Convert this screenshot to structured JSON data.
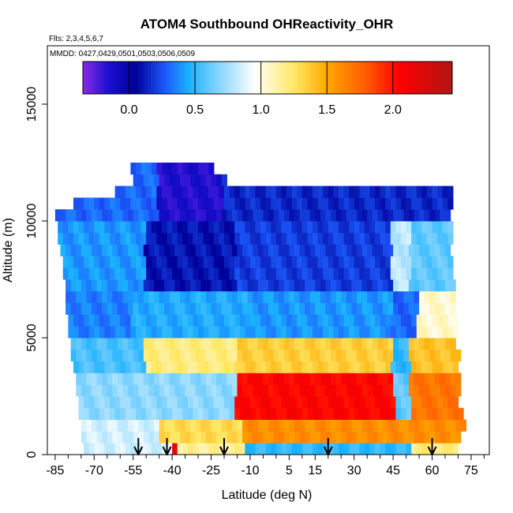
{
  "chart_data": {
    "type": "heatmap",
    "title": "ATOM4 Southbound OHReactivity_OHR",
    "flights_label": "Flts: 2,3,4,5,6,7",
    "dates_label": "MMDD: 0427,0429,0501,0503,0506,0509",
    "xlabel": "Latitude (deg N)",
    "ylabel": "Altitude (m)",
    "xlim": [
      -88,
      82
    ],
    "ylim": [
      0,
      17500
    ],
    "x_ticks": [
      -85,
      -70,
      -55,
      -40,
      -25,
      -10,
      5,
      15,
      30,
      45,
      60,
      75
    ],
    "x_minor_ticks": [
      -80,
      -75,
      -65,
      -60,
      -50,
      -45,
      -35,
      -30,
      -20,
      -15,
      -5,
      0,
      10,
      20,
      25,
      35,
      40,
      50,
      55,
      65,
      70,
      80
    ],
    "y_ticks": [
      0,
      5000,
      10000,
      15000
    ],
    "colorbar": {
      "ticks": [
        0.0,
        0.5,
        1.0,
        1.5,
        2.0
      ],
      "tick_labels": [
        "0.0",
        "0.5",
        "1.0",
        "1.5",
        "2.0"
      ],
      "range": [
        -0.35,
        2.45
      ]
    },
    "colormap": [
      [
        -0.35,
        "#8a2be2"
      ],
      [
        -0.15,
        "#1a0fd0"
      ],
      [
        0.05,
        "#00009a"
      ],
      [
        0.28,
        "#1e5cff"
      ],
      [
        0.45,
        "#1ab0ff"
      ],
      [
        0.7,
        "#8fd8ff"
      ],
      [
        0.95,
        "#ffffff"
      ],
      [
        1.25,
        "#ffe866"
      ],
      [
        1.5,
        "#ffa800"
      ],
      [
        1.8,
        "#ff5a00"
      ],
      [
        2.05,
        "#ff0000"
      ],
      [
        2.45,
        "#b01515"
      ]
    ],
    "altitude_bins": [
      0,
      500,
      1000,
      1500,
      2000,
      2500,
      3000,
      3500,
      4000,
      4500,
      5000,
      5500,
      6000,
      6500,
      7000,
      7500,
      8000,
      8500,
      9000,
      9500,
      10000,
      10500,
      11000,
      11500,
      12000,
      12500
    ],
    "row_extent": [
      [
        -74,
        70
      ],
      [
        -75,
        71
      ],
      [
        -75,
        72
      ],
      [
        -76,
        71
      ],
      [
        -76,
        70
      ],
      [
        -77,
        70
      ],
      [
        -77,
        70
      ],
      [
        -78,
        70
      ],
      [
        -79,
        70
      ],
      [
        -79,
        69
      ],
      [
        -80,
        69
      ],
      [
        -80,
        69
      ],
      [
        -81,
        69
      ],
      [
        -81,
        68
      ],
      [
        -81,
        68
      ],
      [
        -82,
        68
      ],
      [
        -82,
        67
      ],
      [
        -83,
        67
      ],
      [
        -84,
        67
      ],
      [
        -84,
        67
      ],
      [
        -85,
        66
      ],
      [
        -78,
        67
      ],
      [
        -62,
        67
      ],
      [
        -55,
        -20
      ],
      [
        -56,
        -25
      ]
    ],
    "regions": [
      {
        "lat_range": [
          -90,
          -40
        ],
        "alt_range": [
          0,
          500
        ],
        "value": 0.85
      },
      {
        "lat_range": [
          -45,
          -37
        ],
        "alt_range": [
          0,
          500
        ],
        "value": 2.2
      },
      {
        "lat_range": [
          -37,
          -12
        ],
        "alt_range": [
          0,
          500
        ],
        "value": 1.15
      },
      {
        "lat_range": [
          -12,
          52
        ],
        "alt_range": [
          0,
          500
        ],
        "value": 0.5
      },
      {
        "lat_range": [
          52,
          90
        ],
        "alt_range": [
          0,
          500
        ],
        "value": 1.2
      },
      {
        "lat_range": [
          -90,
          -45
        ],
        "alt_range": [
          500,
          1500
        ],
        "value": 0.85
      },
      {
        "lat_range": [
          -45,
          -12
        ],
        "alt_range": [
          500,
          1500
        ],
        "value": 1.3
      },
      {
        "lat_range": [
          -12,
          45
        ],
        "alt_range": [
          500,
          1500
        ],
        "value": 1.6
      },
      {
        "lat_range": [
          45,
          90
        ],
        "alt_range": [
          500,
          1500
        ],
        "value": 1.6
      },
      {
        "lat_range": [
          -90,
          -15
        ],
        "alt_range": [
          1500,
          3500
        ],
        "value": 0.7
      },
      {
        "lat_range": [
          -15,
          46
        ],
        "alt_range": [
          1500,
          3500
        ],
        "value": 2.05
      },
      {
        "lat_range": [
          46,
          52
        ],
        "alt_range": [
          1500,
          3500
        ],
        "value": 0.6
      },
      {
        "lat_range": [
          52,
          90
        ],
        "alt_range": [
          1500,
          3500
        ],
        "value": 1.7
      },
      {
        "lat_range": [
          -90,
          -50
        ],
        "alt_range": [
          3500,
          5000
        ],
        "value": 0.55
      },
      {
        "lat_range": [
          -50,
          -15
        ],
        "alt_range": [
          3500,
          5000
        ],
        "value": 1.2
      },
      {
        "lat_range": [
          -15,
          45
        ],
        "alt_range": [
          3500,
          5000
        ],
        "value": 1.35
      },
      {
        "lat_range": [
          45,
          52
        ],
        "alt_range": [
          3500,
          5000
        ],
        "value": 0.5
      },
      {
        "lat_range": [
          52,
          90
        ],
        "alt_range": [
          3500,
          5000
        ],
        "value": 1.4
      },
      {
        "lat_range": [
          -90,
          -55
        ],
        "alt_range": [
          5000,
          7000
        ],
        "value": 0.35
      },
      {
        "lat_range": [
          -55,
          -10
        ],
        "alt_range": [
          5000,
          7000
        ],
        "value": 0.45
      },
      {
        "lat_range": [
          -10,
          45
        ],
        "alt_range": [
          5000,
          7000
        ],
        "value": 0.4
      },
      {
        "lat_range": [
          45,
          55
        ],
        "alt_range": [
          5000,
          7000
        ],
        "value": 0.3
      },
      {
        "lat_range": [
          55,
          90
        ],
        "alt_range": [
          5000,
          7000
        ],
        "value": 1.05
      },
      {
        "lat_range": [
          -90,
          -50
        ],
        "alt_range": [
          7000,
          10000
        ],
        "value": 0.4
      },
      {
        "lat_range": [
          -50,
          -15
        ],
        "alt_range": [
          7000,
          10000
        ],
        "value": 0.1
      },
      {
        "lat_range": [
          -15,
          45
        ],
        "alt_range": [
          7000,
          10000
        ],
        "value": 0.2
      },
      {
        "lat_range": [
          45,
          52
        ],
        "alt_range": [
          7000,
          10000
        ],
        "value": 0.8
      },
      {
        "lat_range": [
          52,
          90
        ],
        "alt_range": [
          7000,
          10000
        ],
        "value": 0.6
      },
      {
        "lat_range": [
          -90,
          -45
        ],
        "alt_range": [
          10000,
          12500
        ],
        "value": 0.3
      },
      {
        "lat_range": [
          -45,
          -20
        ],
        "alt_range": [
          10000,
          12500
        ],
        "value": -0.15
      },
      {
        "lat_range": [
          -20,
          90
        ],
        "alt_range": [
          10000,
          12500
        ],
        "value": 0.15
      }
    ],
    "flight_markers_lat": [
      -53,
      -42,
      -20,
      20,
      60
    ],
    "grid": false
  }
}
